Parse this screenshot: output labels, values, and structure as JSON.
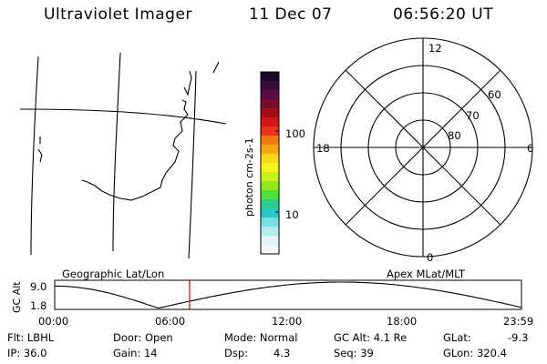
{
  "header": {
    "title": "Ultraviolet Imager",
    "date": "11 Dec 07",
    "time": "06:56:20 UT"
  },
  "colorbar": {
    "label": "photon cm-2s-1",
    "ticks": [
      "100",
      "10"
    ],
    "colors": [
      "#1a0a2e",
      "#3a0b3a",
      "#5c0c40",
      "#7a0c2c",
      "#a50d1a",
      "#d4141a",
      "#e8341a",
      "#f07a12",
      "#f4a814",
      "#f8d81a",
      "#f4f41c",
      "#c8f01c",
      "#8ee81a",
      "#4ede3a",
      "#2ccc8a",
      "#28c8c8",
      "#7adce0",
      "#b8ecec",
      "#e2f4f4",
      "#f4f8f8"
    ]
  },
  "polar": {
    "mlt_labels": {
      "top": "12",
      "bottom": "0",
      "left": "18",
      "right": "6"
    },
    "lat_labels": [
      "60",
      "70",
      "80"
    ]
  },
  "timeline": {
    "left_label": "Geographic Lat/Lon",
    "right_label": "Apex MLat/MLT",
    "axis_title": "GC Alt",
    "y_ticks": [
      "9.0",
      "1.8"
    ],
    "x_ticks": [
      "00:00",
      "06:00",
      "12:00",
      "18:00",
      "23:59"
    ],
    "marker_fraction": 0.289,
    "marker_color": "#cc0000"
  },
  "info": {
    "filter": "Flt: LBHL",
    "ip": "IP: 36.0",
    "door": "Door: Open",
    "gain": "Gain: 14",
    "mode": "Mode: Normal",
    "dsp_label": "Dsp:",
    "dsp_value": "4.3",
    "gcalt": "GC Alt: 4.1 Re",
    "seq": "Seq: 39",
    "glat_label": "GLat:",
    "glat_value": "-9.3",
    "glon": "GLon: 320.4"
  }
}
